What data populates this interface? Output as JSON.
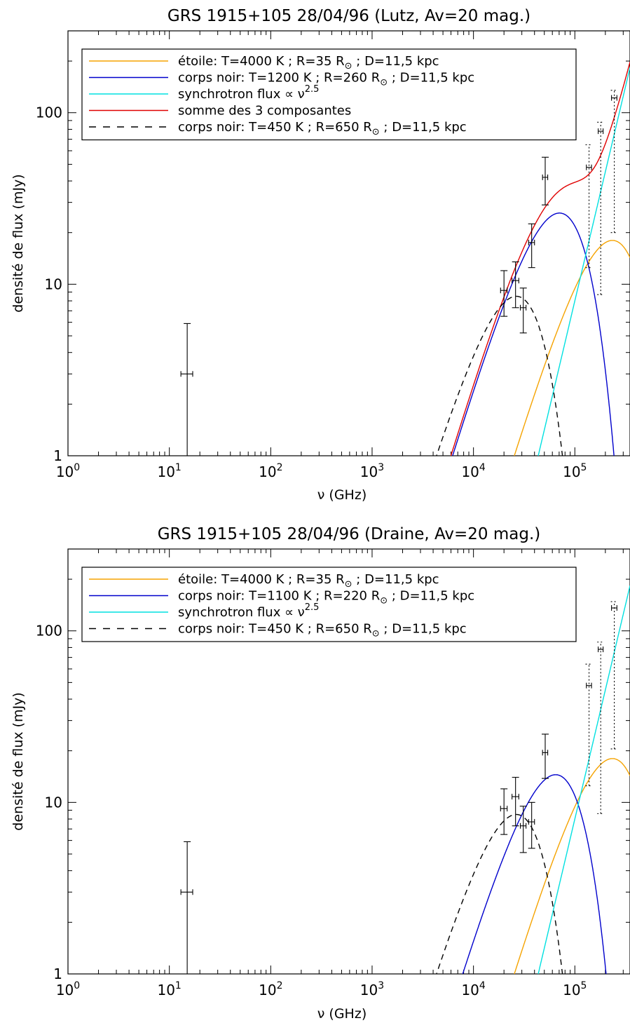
{
  "chart_data": [
    {
      "type": "line",
      "title": "GRS 1915+105  28/04/96 (Lutz, Av=20 mag.)",
      "xlabel": "ν (GHz)",
      "ylabel": "densité de flux (mJy)",
      "xscale": "log",
      "yscale": "log",
      "xlim": [
        1,
        350000
      ],
      "ylim": [
        1,
        300
      ],
      "grid": false,
      "legend_position": "top-left",
      "x_ticks": [
        {
          "base": "10",
          "exp": "0",
          "value": 1
        },
        {
          "base": "10",
          "exp": "1",
          "value": 10
        },
        {
          "base": "10",
          "exp": "2",
          "value": 100
        },
        {
          "base": "10",
          "exp": "3",
          "value": 1000
        },
        {
          "base": "10",
          "exp": "4",
          "value": 10000
        },
        {
          "base": "10",
          "exp": "5",
          "value": 100000
        }
      ],
      "y_ticks": [
        {
          "label": "1",
          "value": 1
        },
        {
          "label": "10",
          "value": 10
        },
        {
          "label": "100",
          "value": 100
        }
      ],
      "legend": [
        {
          "text": "étoile: T=4000 K ; R=35 R",
          "sub": "⊙",
          "tail": " ; D=11,5 kpc",
          "color": "#f5a300",
          "dash": false
        },
        {
          "text": "corps noir: T=1200 K ; R=260 R",
          "sub": "⊙",
          "tail": " ; D=11,5 kpc",
          "color": "#0000cc",
          "dash": false
        },
        {
          "text": "synchrotron flux ∝ ν",
          "sup": "2.5",
          "color": "#00e0e0",
          "dash": false
        },
        {
          "text": "somme des 3 composantes",
          "color": "#e00000",
          "dash": false
        },
        {
          "text": "corps noir: T=450 K ; R=650 R",
          "sub": "⊙",
          "tail": " ; D=11,5 kpc",
          "color": "#000000",
          "dash": true
        }
      ],
      "series": [
        {
          "kind": "star",
          "color": "#f5a300",
          "T": 4000,
          "peak_x": 230000,
          "peak_y": 18
        },
        {
          "kind": "bb",
          "color": "#0000cc",
          "T": 1200,
          "peak_x": 70000,
          "peak_y": 26
        },
        {
          "kind": "sync",
          "color": "#00e0e0",
          "ref_x": 100000,
          "ref_y": 8,
          "index": 2.5
        },
        {
          "kind": "sum",
          "color": "#e00000"
        },
        {
          "kind": "bbd",
          "color": "#000000",
          "T": 450,
          "peak_x": 26000,
          "peak_y": 8.5
        }
      ],
      "points": [
        {
          "x": 15,
          "y": 3.0,
          "ylo": 0.8,
          "yhi": 5.9,
          "xlo": 13,
          "xhi": 17,
          "style": "solid"
        },
        {
          "x": 20000,
          "y": 9.2,
          "ylo": 6.5,
          "yhi": 12.0,
          "xlo": 18500,
          "xhi": 21500,
          "style": "solid"
        },
        {
          "x": 26000,
          "y": 10.5,
          "ylo": 7.3,
          "yhi": 13.5,
          "xlo": 24000,
          "xhi": 28000,
          "style": "solid"
        },
        {
          "x": 31000,
          "y": 7.3,
          "ylo": 5.2,
          "yhi": 9.5,
          "xlo": 29000,
          "xhi": 33000,
          "style": "solid"
        },
        {
          "x": 37500,
          "y": 17.5,
          "ylo": 12.5,
          "yhi": 22.5,
          "xlo": 35000,
          "xhi": 40000,
          "style": "solid"
        },
        {
          "x": 51000,
          "y": 42,
          "ylo": 29,
          "yhi": 55,
          "xlo": 48000,
          "xhi": 54000,
          "style": "solid"
        },
        {
          "x": 138000,
          "y": 48,
          "ylo": 12.5,
          "yhi": 65,
          "xlo": 130000,
          "xhi": 146000,
          "style": "dotted"
        },
        {
          "x": 180000,
          "y": 78,
          "ylo": 8.7,
          "yhi": 88,
          "xlo": 170000,
          "xhi": 190000,
          "style": "dotted"
        },
        {
          "x": 245000,
          "y": 122,
          "ylo": 20,
          "yhi": 135,
          "xlo": 230000,
          "xhi": 260000,
          "style": "dotted"
        }
      ]
    },
    {
      "type": "line",
      "title": "GRS 1915+105  28/04/96 (Draine, Av=20 mag.)",
      "xlabel": "ν (GHz)",
      "ylabel": "densité de flux (mJy)",
      "xscale": "log",
      "yscale": "log",
      "xlim": [
        1,
        350000
      ],
      "ylim": [
        1,
        300
      ],
      "grid": false,
      "legend_position": "top-left",
      "x_ticks": [
        {
          "base": "10",
          "exp": "0",
          "value": 1
        },
        {
          "base": "10",
          "exp": "1",
          "value": 10
        },
        {
          "base": "10",
          "exp": "2",
          "value": 100
        },
        {
          "base": "10",
          "exp": "3",
          "value": 1000
        },
        {
          "base": "10",
          "exp": "4",
          "value": 10000
        },
        {
          "base": "10",
          "exp": "5",
          "value": 100000
        }
      ],
      "y_ticks": [
        {
          "label": "1",
          "value": 1
        },
        {
          "label": "10",
          "value": 10
        },
        {
          "label": "100",
          "value": 100
        }
      ],
      "legend": [
        {
          "text": "étoile: T=4000 K ; R=35 R",
          "sub": "⊙",
          "tail": " ; D=11,5 kpc",
          "color": "#f5a300",
          "dash": false
        },
        {
          "text": "corps noir: T=1100 K ; R=220 R",
          "sub": "⊙",
          "tail": " ; D=11,5 kpc",
          "color": "#0000cc",
          "dash": false
        },
        {
          "text": "synchrotron flux ∝ ν",
          "sup": "2.5",
          "color": "#00e0e0",
          "dash": false
        },
        {
          "text": "corps noir: T=450 K ; R=650 R",
          "sub": "⊙",
          "tail": " ; D=11,5 kpc",
          "color": "#000000",
          "dash": true
        }
      ],
      "series": [
        {
          "kind": "star",
          "color": "#f5a300",
          "T": 4000,
          "peak_x": 230000,
          "peak_y": 18
        },
        {
          "kind": "bb",
          "color": "#0000cc",
          "T": 1100,
          "peak_x": 64000,
          "peak_y": 14.5
        },
        {
          "kind": "sync",
          "color": "#00e0e0",
          "ref_x": 100000,
          "ref_y": 8,
          "index": 2.5
        },
        {
          "kind": "bbd",
          "color": "#000000",
          "T": 450,
          "peak_x": 26000,
          "peak_y": 8.5
        }
      ],
      "points": [
        {
          "x": 15,
          "y": 3.0,
          "ylo": 0.8,
          "yhi": 5.9,
          "xlo": 13,
          "xhi": 17,
          "style": "solid"
        },
        {
          "x": 20000,
          "y": 9.2,
          "ylo": 6.5,
          "yhi": 12.0,
          "xlo": 18500,
          "xhi": 21500,
          "style": "solid"
        },
        {
          "x": 26000,
          "y": 10.8,
          "ylo": 7.3,
          "yhi": 14.0,
          "xlo": 24000,
          "xhi": 28000,
          "style": "solid"
        },
        {
          "x": 31000,
          "y": 7.3,
          "ylo": 5.1,
          "yhi": 9.5,
          "xlo": 29000,
          "xhi": 33000,
          "style": "solid"
        },
        {
          "x": 37500,
          "y": 7.7,
          "ylo": 5.4,
          "yhi": 10.0,
          "xlo": 35000,
          "xhi": 40000,
          "style": "solid"
        },
        {
          "x": 51000,
          "y": 19.5,
          "ylo": 13.8,
          "yhi": 25,
          "xlo": 48000,
          "xhi": 54000,
          "style": "solid"
        },
        {
          "x": 138000,
          "y": 48,
          "ylo": 12.5,
          "yhi": 64,
          "xlo": 130000,
          "xhi": 146000,
          "style": "dotted"
        },
        {
          "x": 180000,
          "y": 78,
          "ylo": 8.6,
          "yhi": 86,
          "xlo": 170000,
          "xhi": 190000,
          "style": "dotted"
        },
        {
          "x": 245000,
          "y": 136,
          "ylo": 20.5,
          "yhi": 148,
          "xlo": 230000,
          "xhi": 260000,
          "style": "dotted"
        }
      ]
    }
  ]
}
